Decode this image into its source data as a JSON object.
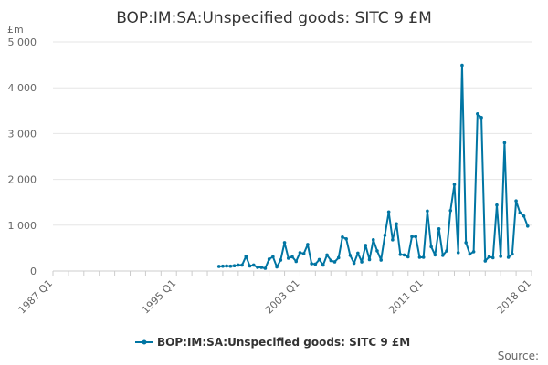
{
  "chart_data": {
    "type": "line",
    "title": "BOP:IM:SA:Unspecified goods: SITC 9 £M",
    "unit_label": "£m",
    "source_label": "Source:",
    "xlabel": "",
    "ylabel": "",
    "ylim": [
      0,
      5000
    ],
    "y_ticks": [
      0,
      1000,
      2000,
      3000,
      4000,
      5000
    ],
    "y_tick_labels": [
      "0",
      "1 000",
      "2 000",
      "3 000",
      "4 000",
      "5 000"
    ],
    "x_range": [
      "1987 Q1",
      "2018 Q1"
    ],
    "x_ticks": [
      "1987 Q1",
      "1995 Q1",
      "2003 Q1",
      "2011 Q1",
      "2018 Q1"
    ],
    "grid": true,
    "legend_position": "bottom",
    "accent_color": "#0075a3",
    "series": [
      {
        "name": "BOP:IM:SA:Unspecified goods: SITC 9 £M",
        "start": "1997 Q4",
        "values": [
          100,
          105,
          110,
          105,
          115,
          130,
          130,
          320,
          110,
          130,
          80,
          80,
          60,
          260,
          310,
          90,
          240,
          620,
          280,
          310,
          210,
          400,
          380,
          580,
          160,
          150,
          250,
          130,
          350,
          230,
          200,
          290,
          740,
          700,
          340,
          170,
          390,
          200,
          560,
          250,
          680,
          440,
          240,
          780,
          1290,
          680,
          1030,
          360,
          350,
          310,
          750,
          750,
          300,
          300,
          1310,
          530,
          350,
          920,
          340,
          440,
          1320,
          1890,
          400,
          4490,
          620,
          370,
          420,
          3430,
          3350,
          220,
          310,
          290,
          1440,
          320,
          2800,
          300,
          370,
          1530,
          1270,
          1200,
          980
        ]
      }
    ]
  }
}
